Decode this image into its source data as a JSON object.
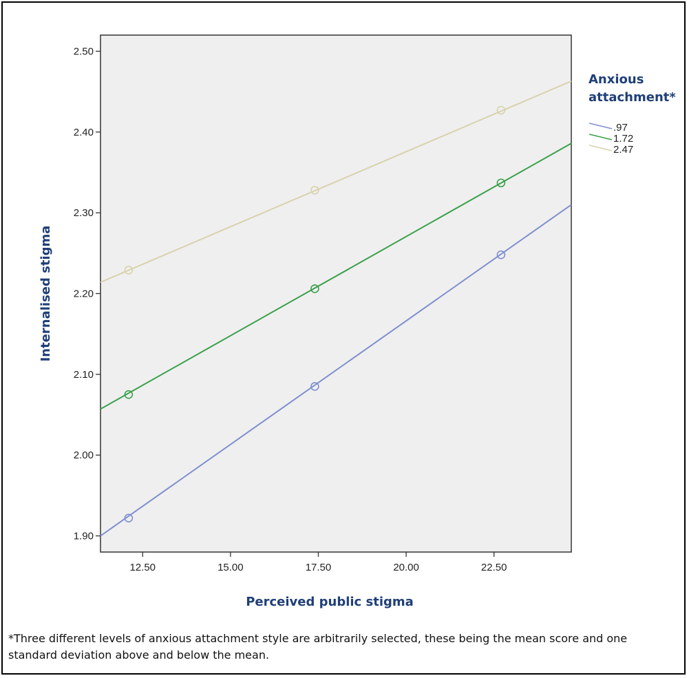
{
  "chart_data": {
    "type": "line",
    "xlabel": "Perceived public stigma",
    "ylabel": "Internalised stigma",
    "xlim": [
      11.3,
      24.7
    ],
    "ylim": [
      1.88,
      2.52
    ],
    "xticks": [
      12.5,
      15.0,
      17.5,
      20.0,
      22.5
    ],
    "xtick_labels": [
      "12.50",
      "15.00",
      "17.50",
      "20.00",
      "22.50"
    ],
    "yticks": [
      1.9,
      2.0,
      2.1,
      2.2,
      2.3,
      2.4,
      2.5
    ],
    "ytick_labels": [
      "1.90",
      "2.00",
      "2.10",
      "2.20",
      "2.30",
      "2.40",
      "2.50"
    ],
    "grid": false,
    "legend_title": "Anxious attachment*",
    "legend_position": "right",
    "series": [
      {
        "name": ".97",
        "color": "#7f8fcf",
        "line_x": [
          11.3,
          24.7
        ],
        "line_y": [
          1.9,
          2.31
        ],
        "points_x": [
          12.1,
          17.4,
          22.7
        ],
        "points_y": [
          1.922,
          2.085,
          2.248
        ]
      },
      {
        "name": "1.72",
        "color": "#3aa04a",
        "line_x": [
          11.3,
          24.7
        ],
        "line_y": [
          2.057,
          2.386
        ],
        "points_x": [
          12.1,
          17.4,
          22.7
        ],
        "points_y": [
          2.075,
          2.206,
          2.337
        ]
      },
      {
        "name": "2.47",
        "color": "#d8d2ac",
        "line_x": [
          11.3,
          24.7
        ],
        "line_y": [
          2.214,
          2.463
        ],
        "points_x": [
          12.1,
          17.4,
          22.7
        ],
        "points_y": [
          2.229,
          2.328,
          2.427
        ]
      }
    ],
    "title_color": "#1f3f78",
    "plot_background": "#efefef"
  },
  "footnote": "*Three different levels of anxious attachment style are arbitrarily selected, these being the mean score and one standard deviation above and below the mean."
}
